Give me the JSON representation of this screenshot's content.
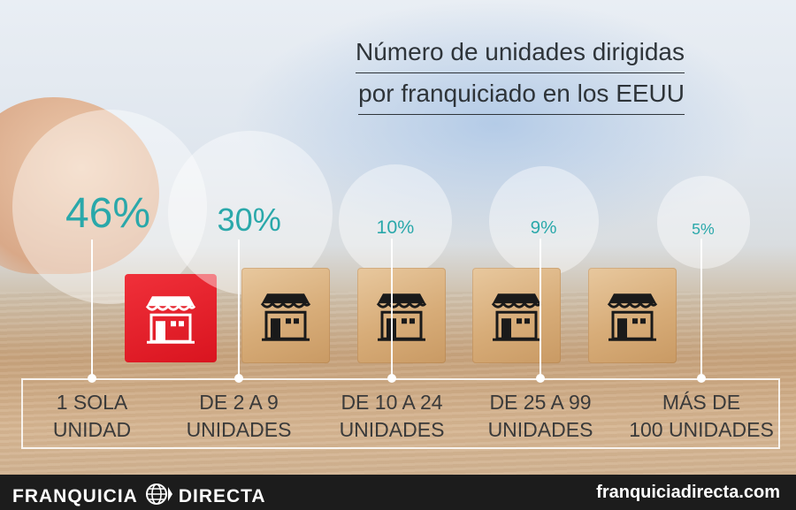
{
  "title_line1": "Número de unidades dirigidas",
  "title_line2": "por franquiciado en los EEUU",
  "chart_data": {
    "type": "bar",
    "title": "Número de unidades dirigidas por franquiciado en los EEUU",
    "categories": [
      [
        "1 SOLA",
        "UNIDAD"
      ],
      [
        "DE 2 A 9",
        "UNIDADES"
      ],
      [
        "DE 10 A 24",
        "UNIDADES"
      ],
      [
        "DE 25 A 99",
        "UNIDADES"
      ],
      [
        "MÁS DE",
        "100 UNIDADES"
      ]
    ],
    "values": [
      46,
      30,
      10,
      9,
      5
    ],
    "value_labels": [
      "46%",
      "30%",
      "10%",
      "9%",
      "5%"
    ],
    "unit": "%"
  },
  "colors": {
    "accent": "#2aa8aa",
    "highlight_block": "#e01a24",
    "footer_bg": "#1c1c1c"
  },
  "icons": [
    "store-icon",
    "globe-icon"
  ],
  "footer": {
    "brand_left": "FRANQUICIA",
    "brand_right": "DIRECTA",
    "website": "franquiciadirecta.com"
  }
}
